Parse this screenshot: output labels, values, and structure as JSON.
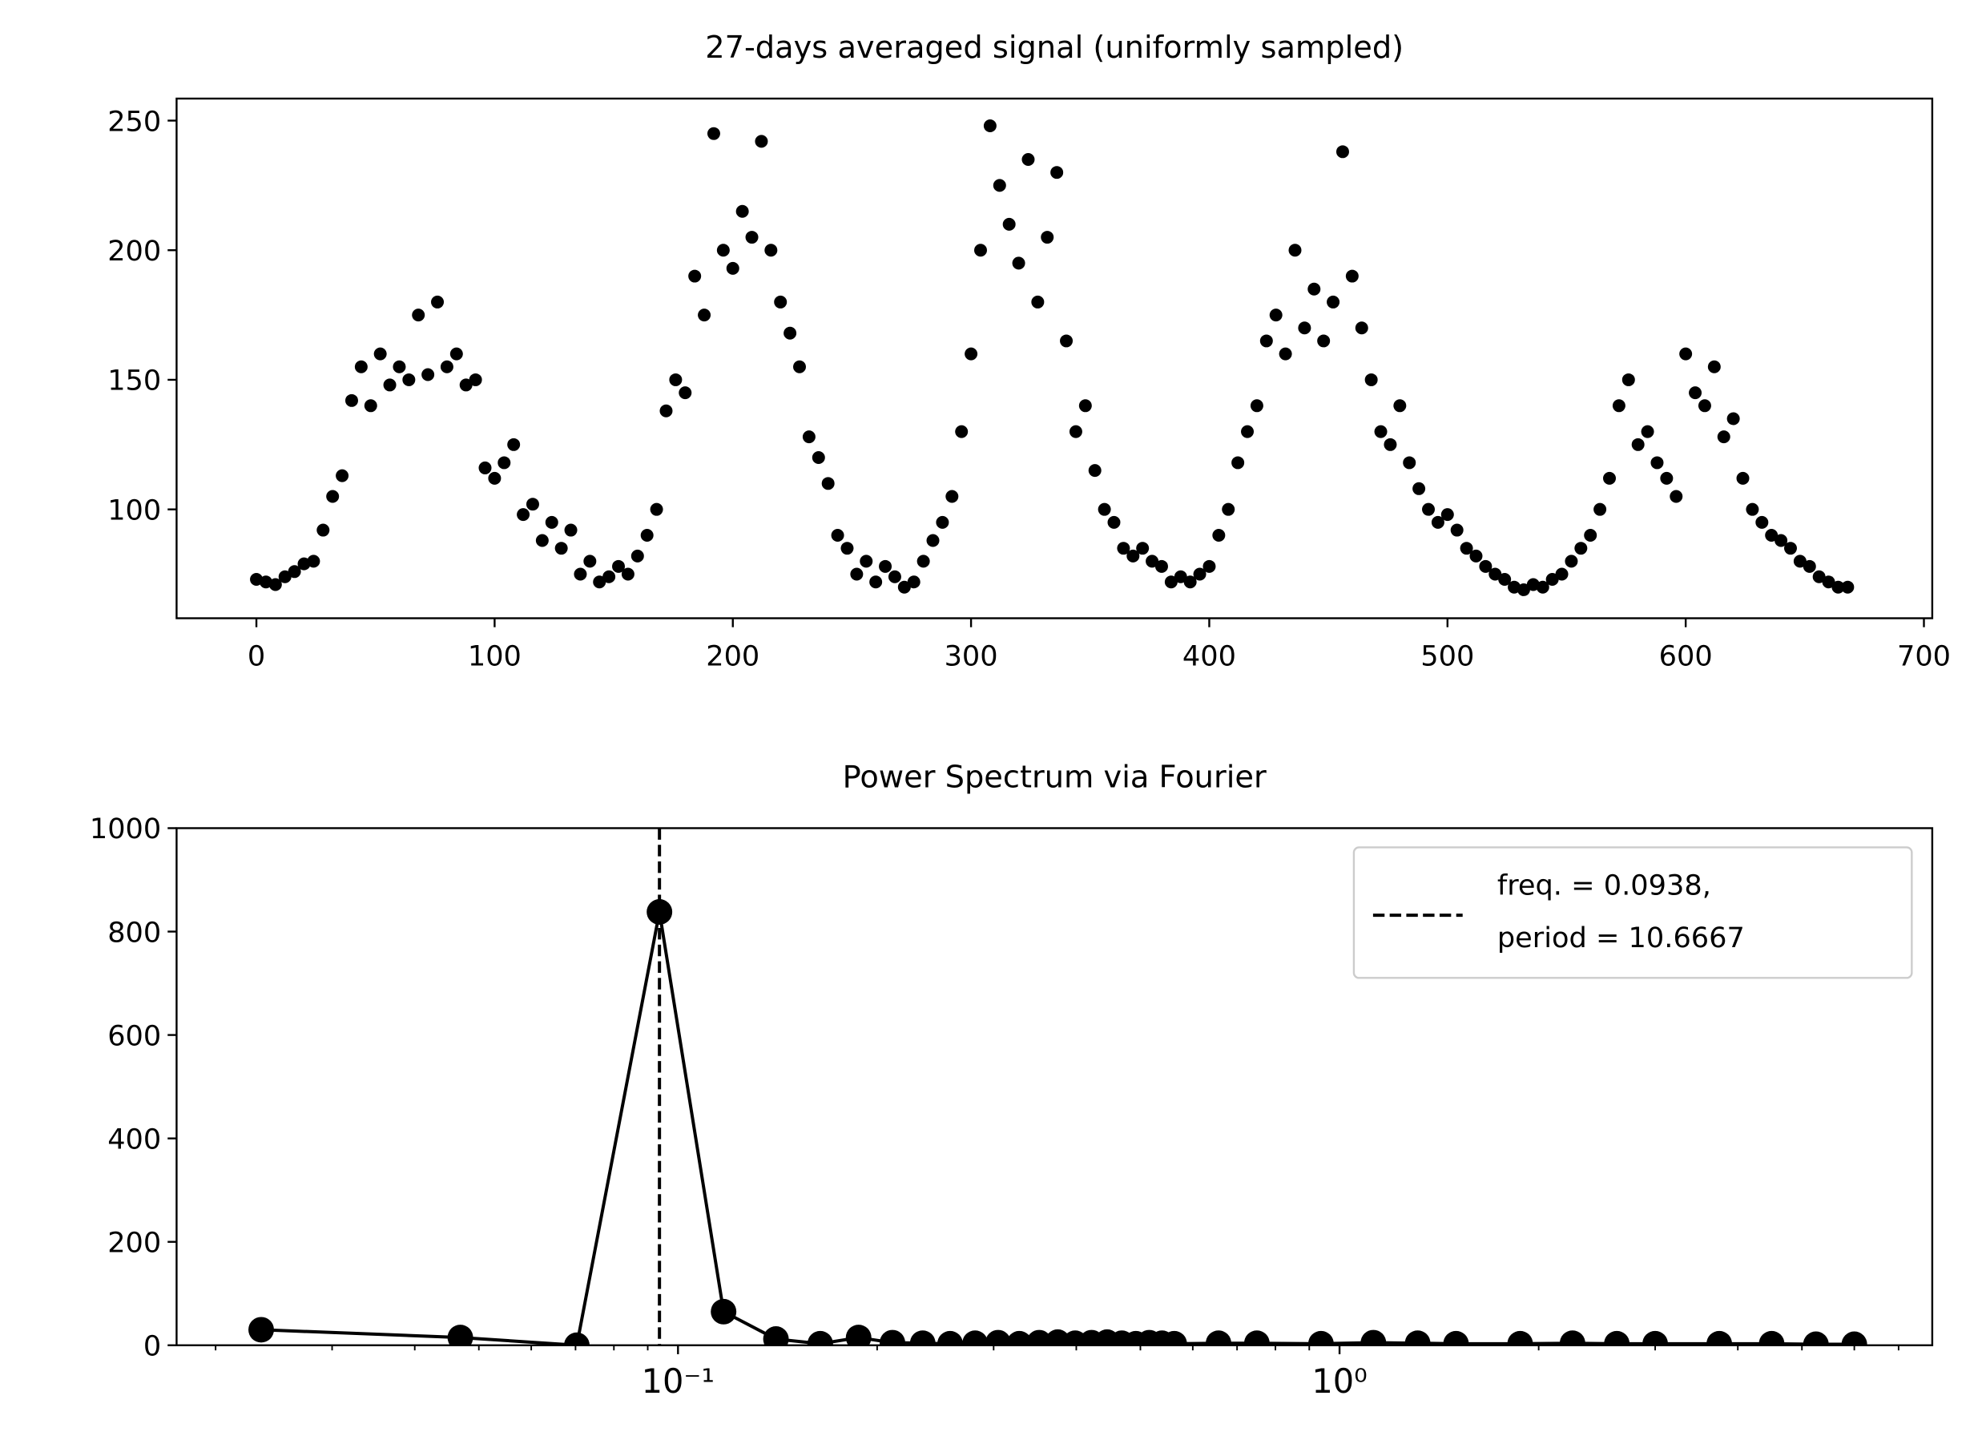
{
  "chart_data": [
    {
      "type": "scatter",
      "title": "27-days averaged signal (uniformly sampled)",
      "color": "#000000",
      "x": [
        0,
        4,
        8,
        12,
        16,
        20,
        24,
        28,
        32,
        36,
        40,
        44,
        48,
        52,
        56,
        60,
        64,
        68,
        72,
        76,
        80,
        84,
        88,
        92,
        96,
        100,
        104,
        108,
        112,
        116,
        120,
        124,
        128,
        132,
        136,
        140,
        144,
        148,
        152,
        156,
        160,
        164,
        168,
        172,
        176,
        180,
        184,
        188,
        192,
        196,
        200,
        204,
        208,
        212,
        216,
        220,
        224,
        228,
        232,
        236,
        240,
        244,
        248,
        252,
        256,
        260,
        264,
        268,
        272,
        276,
        280,
        284,
        288,
        292,
        296,
        300,
        304,
        308,
        312,
        316,
        320,
        324,
        328,
        332,
        336,
        340,
        344,
        348,
        352,
        356,
        360,
        364,
        368,
        372,
        376,
        380,
        384,
        388,
        392,
        396,
        400,
        404,
        408,
        412,
        416,
        420,
        424,
        428,
        432,
        436,
        440,
        444,
        448,
        452,
        456,
        460,
        464,
        468,
        472,
        476,
        480,
        484,
        488,
        492,
        496,
        500,
        504,
        508,
        512,
        516,
        520,
        524,
        528,
        532,
        536,
        540,
        544,
        548,
        552,
        556,
        560,
        564,
        568,
        572,
        576,
        580,
        584,
        588,
        592,
        596,
        600,
        604,
        608,
        612,
        616,
        620,
        624,
        628,
        632,
        636,
        640,
        644,
        648,
        652,
        656,
        660,
        664,
        668
      ],
      "values": [
        73,
        72,
        71,
        74,
        76,
        79,
        80,
        92,
        105,
        113,
        142,
        155,
        140,
        160,
        148,
        155,
        150,
        175,
        152,
        180,
        155,
        160,
        148,
        150,
        116,
        112,
        118,
        125,
        98,
        102,
        88,
        95,
        85,
        92,
        75,
        80,
        72,
        74,
        78,
        75,
        82,
        90,
        100,
        138,
        150,
        145,
        190,
        175,
        245,
        200,
        193,
        215,
        205,
        242,
        200,
        180,
        168,
        155,
        128,
        120,
        110,
        90,
        85,
        75,
        80,
        72,
        78,
        74,
        70,
        72,
        80,
        88,
        95,
        105,
        130,
        160,
        200,
        248,
        225,
        210,
        195,
        235,
        180,
        205,
        230,
        165,
        130,
        140,
        115,
        100,
        95,
        85,
        82,
        85,
        80,
        78,
        72,
        74,
        72,
        75,
        78,
        90,
        100,
        118,
        130,
        140,
        165,
        175,
        160,
        200,
        170,
        185,
        165,
        180,
        238,
        190,
        170,
        150,
        130,
        125,
        140,
        118,
        108,
        100,
        95,
        98,
        92,
        85,
        82,
        78,
        75,
        73,
        70,
        69,
        71,
        70,
        73,
        75,
        80,
        85,
        90,
        100,
        112,
        140,
        150,
        125,
        130,
        118,
        112,
        105,
        160,
        145,
        140,
        155,
        128,
        135,
        112,
        100,
        95,
        90,
        88,
        85,
        80,
        78,
        74,
        72,
        70,
        70
      ],
      "xlim": [
        -33.5,
        703.5
      ],
      "ylim": [
        58,
        258.5
      ],
      "xticks": [
        0,
        100,
        200,
        300,
        400,
        500,
        600,
        700
      ],
      "yticks": [
        100,
        150,
        200,
        250
      ]
    },
    {
      "type": "line",
      "title": "Power Spectrum via Fourier",
      "color": "#000000",
      "xscale": "log",
      "x": [
        0.0234375,
        0.046875,
        0.0703125,
        0.09375,
        0.1171875,
        0.140625,
        0.1640625,
        0.1875,
        0.2109375,
        0.234375,
        0.2578125,
        0.28125,
        0.3046875,
        0.328125,
        0.3515625,
        0.375,
        0.3984375,
        0.421875,
        0.4453125,
        0.46875,
        0.4921875,
        0.515625,
        0.5390625,
        0.5625,
        0.65625,
        0.75,
        0.9375,
        1.125,
        1.3125,
        1.5,
        1.875,
        2.25,
        2.625,
        3.0,
        3.75,
        4.5,
        5.25,
        6.0
      ],
      "values": [
        30,
        15,
        0,
        838,
        65,
        12,
        3,
        15,
        5,
        4,
        3,
        4,
        5,
        3,
        5,
        6,
        4,
        5,
        6,
        4,
        3,
        5,
        4,
        3,
        4,
        4,
        3,
        5,
        4,
        3,
        3,
        4,
        3,
        3,
        3,
        3,
        2,
        2
      ],
      "xlim": [
        0.01746,
        7.87
      ],
      "ylim": [
        0,
        1000
      ],
      "xticks": [
        {
          "value": 0.1,
          "label": "10⁻¹"
        },
        {
          "value": 1,
          "label": "10⁰"
        }
      ],
      "xminorticks": [
        0.02,
        0.03,
        0.04,
        0.05,
        0.06,
        0.07,
        0.08,
        0.09,
        0.2,
        0.3,
        0.4,
        0.5,
        0.6,
        0.7,
        0.8,
        0.9,
        2,
        3,
        4,
        5,
        6,
        7
      ],
      "yticks": [
        0,
        200,
        400,
        600,
        800,
        1000
      ],
      "vline": {
        "x": 0.09375,
        "label": "freq. = 0.0938,\nperiod = 10.6667",
        "style": "dashed"
      },
      "legend": "upper right"
    }
  ]
}
